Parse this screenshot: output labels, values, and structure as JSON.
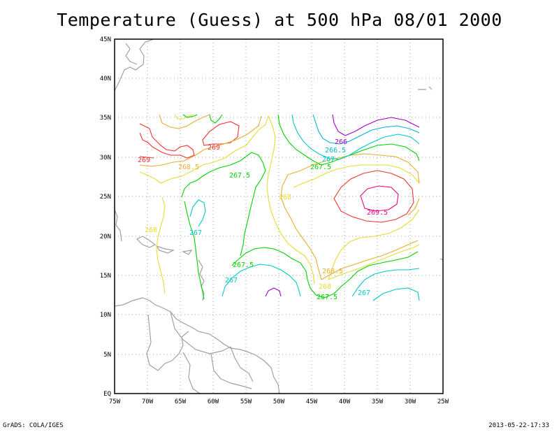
{
  "title": "Temperature (Guess) at 500 hPa 08/01 2000",
  "footer": {
    "credit": "GrADS: COLA/IGES",
    "timestamp": "2013-05-22-17:33"
  },
  "axes": {
    "lon_labels": [
      "75W",
      "70W",
      "65W",
      "60W",
      "55W",
      "50W",
      "45W",
      "40W",
      "35W",
      "30W",
      "25W"
    ],
    "lat_labels": [
      "EQ",
      "5N",
      "10N",
      "15N",
      "20N",
      "25N",
      "30N",
      "35N",
      "40N",
      "45N"
    ]
  },
  "colors": {
    "c266": "#a000c8",
    "c266_5": "#00b4d2",
    "c267": "#00c8c8",
    "c267_5": "#00d200",
    "c268": "#e6dc32",
    "c268_5": "#e6af2d",
    "c269": "#f03232",
    "c269_5": "#f00082",
    "coast": "#a0a0a0",
    "grid": "#a0a0a0"
  },
  "contour_labels": [
    {
      "text": "266",
      "color": "c266"
    },
    {
      "text": "266.5",
      "color": "c266_5"
    },
    {
      "text": "267",
      "color": "c267"
    },
    {
      "text": "267.5",
      "color": "c267_5"
    },
    {
      "text": "268.5",
      "color": "c268_5"
    },
    {
      "text": "269",
      "color": "c269"
    },
    {
      "text": "269",
      "color": "c269"
    },
    {
      "text": "267.5",
      "color": "c267_5"
    },
    {
      "text": "268",
      "color": "c268"
    },
    {
      "text": "269.5",
      "color": "c269_5"
    },
    {
      "text": "268",
      "color": "c268"
    },
    {
      "text": "267",
      "color": "c267"
    },
    {
      "text": "267.5",
      "color": "c267_5"
    },
    {
      "text": "267",
      "color": "c267"
    },
    {
      "text": "268.5",
      "color": "c268_5"
    },
    {
      "text": "268",
      "color": "c268"
    },
    {
      "text": "267",
      "color": "c267"
    },
    {
      "text": "267.5",
      "color": "c267_5"
    }
  ]
}
